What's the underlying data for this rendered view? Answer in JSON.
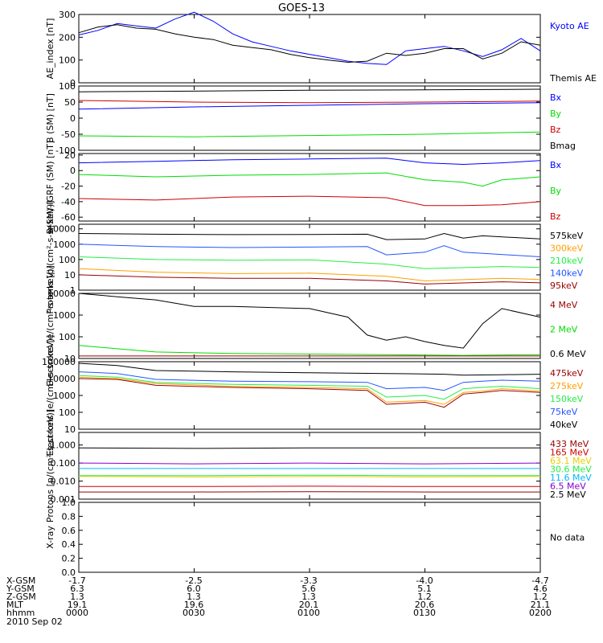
{
  "title": "GOES-13",
  "date": "2010 Sep 02",
  "colors": {
    "black": "#000000",
    "blue": "#0000ff",
    "green": "#00dd00",
    "red": "#cc0000",
    "orange": "#ffa000",
    "darkred": "#990000",
    "ltgreen": "#22ee44",
    "royal": "#2255ff",
    "cyan": "#00b8ff",
    "purple": "#8800cc",
    "yellow": "#e8d000"
  },
  "ephemeris": {
    "labels": [
      "X-GSM",
      "Y-GSM",
      "Z-GSM",
      "MLT",
      "hhmm"
    ],
    "columns": [
      [
        "-1.7",
        "6.3",
        "1.3",
        "19.1",
        "0000"
      ],
      [
        "-2.5",
        "6.0",
        "1.3",
        "19.6",
        "0030"
      ],
      [
        "-3.3",
        "5.6",
        "1.3",
        "20.1",
        "0100"
      ],
      [
        "-4.0",
        "5.1",
        "1.2",
        "20.6",
        "0130"
      ],
      [
        "-4.7",
        "4.6",
        "1.2",
        "21.1",
        "0200"
      ]
    ]
  },
  "chart_data": [
    {
      "type": "line",
      "ylabel": "AE_index [nT]",
      "ylim": [
        0,
        300
      ],
      "yticks": [
        0,
        100,
        200,
        300
      ],
      "xlim": [
        0,
        120
      ],
      "series": [
        {
          "name": "Kyoto AE",
          "color": "blue",
          "x": [
            0,
            5,
            10,
            15,
            20,
            25,
            30,
            35,
            40,
            45,
            50,
            55,
            60,
            65,
            70,
            75,
            80,
            85,
            90,
            95,
            100,
            105,
            110,
            115,
            120
          ],
          "y": [
            210,
            230,
            260,
            250,
            240,
            280,
            310,
            270,
            215,
            180,
            160,
            140,
            125,
            110,
            95,
            85,
            80,
            140,
            150,
            160,
            140,
            115,
            145,
            195,
            140
          ]
        },
        {
          "name": "Themis AE",
          "color": "black",
          "x": [
            0,
            5,
            10,
            15,
            20,
            25,
            30,
            35,
            40,
            45,
            50,
            55,
            60,
            65,
            70,
            75,
            80,
            85,
            90,
            95,
            100,
            105,
            110,
            115,
            120
          ],
          "y": [
            220,
            245,
            255,
            240,
            235,
            215,
            200,
            190,
            165,
            155,
            145,
            125,
            110,
            100,
            90,
            95,
            130,
            120,
            130,
            150,
            150,
            105,
            130,
            180,
            165
          ]
        }
      ]
    },
    {
      "type": "line",
      "ylabel": "B (SM) [nT]",
      "ylim": [
        -100,
        100
      ],
      "yticks": [
        -100,
        -50,
        0,
        50,
        100
      ],
      "xlim": [
        0,
        120
      ],
      "series": [
        {
          "name": "Bx",
          "color": "blue",
          "x": [
            0,
            30,
            60,
            90,
            120
          ],
          "y": [
            28,
            35,
            40,
            45,
            48
          ]
        },
        {
          "name": "By",
          "color": "green",
          "x": [
            0,
            30,
            60,
            90,
            120
          ],
          "y": [
            -55,
            -58,
            -54,
            -50,
            -43
          ]
        },
        {
          "name": "Bz",
          "color": "red",
          "x": [
            0,
            30,
            60,
            90,
            120
          ],
          "y": [
            55,
            50,
            48,
            50,
            53
          ]
        },
        {
          "name": "Bmag",
          "color": "black",
          "x": [
            0,
            30,
            60,
            90,
            120
          ],
          "y": [
            82,
            84,
            87,
            88,
            90
          ]
        }
      ]
    },
    {
      "type": "line",
      "ylabel": "B(SM)-IGRF (SM) [nT]",
      "ylim": [
        -65,
        22
      ],
      "yticks": [
        -60,
        -40,
        -20,
        0,
        20
      ],
      "xlim": [
        0,
        120
      ],
      "series": [
        {
          "name": "Bx",
          "color": "blue",
          "x": [
            0,
            20,
            40,
            60,
            80,
            90,
            100,
            110,
            120
          ],
          "y": [
            10,
            12,
            14,
            15,
            16,
            10,
            8,
            10,
            13
          ]
        },
        {
          "name": "By",
          "color": "green",
          "x": [
            0,
            20,
            40,
            60,
            80,
            90,
            100,
            105,
            110,
            120
          ],
          "y": [
            -5,
            -8,
            -6,
            -5,
            -3,
            -12,
            -15,
            -20,
            -12,
            -8
          ]
        },
        {
          "name": "Bz",
          "color": "red",
          "x": [
            0,
            20,
            40,
            60,
            80,
            90,
            100,
            110,
            120
          ],
          "y": [
            -36,
            -38,
            -34,
            -33,
            -35,
            -45,
            -45,
            -44,
            -40
          ]
        }
      ]
    },
    {
      "type": "line",
      "ylabel": "Protons [p/(cm²-s-sr-keV)]",
      "log": true,
      "ylim": [
        1,
        20000
      ],
      "yticks": [
        1,
        10,
        100,
        1000,
        10000
      ],
      "xlim": [
        0,
        120
      ],
      "series": [
        {
          "name": "575keV",
          "color": "black",
          "x": [
            0,
            20,
            40,
            60,
            75,
            80,
            90,
            95,
            100,
            105,
            120
          ],
          "y": [
            5000,
            4500,
            4200,
            4300,
            4500,
            2000,
            2200,
            5000,
            2500,
            3500,
            2200
          ]
        },
        {
          "name": "300keV",
          "color": "orange",
          "x": [
            0,
            20,
            40,
            60,
            80,
            90,
            110,
            120
          ],
          "y": [
            25,
            15,
            12,
            13,
            8,
            4,
            6,
            5
          ]
        },
        {
          "name": "210keV",
          "color": "ltgreen",
          "x": [
            0,
            20,
            40,
            60,
            80,
            90,
            110,
            120
          ],
          "y": [
            150,
            100,
            90,
            95,
            50,
            25,
            35,
            30
          ]
        },
        {
          "name": "140keV",
          "color": "royal",
          "x": [
            0,
            20,
            40,
            60,
            75,
            80,
            90,
            95,
            100,
            120
          ],
          "y": [
            1000,
            700,
            600,
            650,
            700,
            200,
            300,
            800,
            300,
            150
          ]
        },
        {
          "name": "95keV",
          "color": "darkred",
          "x": [
            0,
            20,
            40,
            60,
            80,
            90,
            110,
            120
          ],
          "y": [
            10,
            7,
            6,
            6,
            4,
            2.5,
            3.5,
            3
          ]
        }
      ]
    },
    {
      "type": "line",
      "ylabel": "Electrons [e/(cm²-s-sr-keV)]",
      "log": true,
      "ylim": [
        10,
        10000
      ],
      "yticks": [
        10,
        100,
        1000,
        10000
      ],
      "xlim": [
        0,
        120
      ],
      "series": [
        {
          "name": "4 MeV",
          "color": "darkred",
          "x": [
            0,
            30,
            60,
            90,
            120
          ],
          "y": [
            13,
            13,
            13,
            13,
            13
          ]
        },
        {
          "name": "2 MeV",
          "color": "green",
          "x": [
            0,
            10,
            20,
            40,
            60,
            80,
            100,
            120
          ],
          "y": [
            40,
            28,
            20,
            17,
            16,
            15,
            14,
            15
          ]
        },
        {
          "name": "0.6 MeV",
          "color": "black",
          "x": [
            0,
            10,
            20,
            30,
            40,
            60,
            70,
            75,
            80,
            85,
            90,
            95,
            100,
            105,
            110,
            120
          ],
          "y": [
            10000,
            7000,
            5000,
            2500,
            2500,
            2000,
            800,
            120,
            70,
            100,
            60,
            40,
            30,
            400,
            2000,
            800
          ]
        }
      ]
    },
    {
      "type": "line",
      "ylabel": "Electrons [e/(cm²-s-sr-keV)]",
      "log": true,
      "ylim": [
        10,
        100000
      ],
      "yticks": [
        10,
        100,
        1000,
        10000,
        100000
      ],
      "xlim": [
        0,
        120
      ],
      "series": [
        {
          "name": "475keV",
          "color": "darkred",
          "x": [
            0,
            10,
            20,
            40,
            60,
            75,
            80,
            90,
            95,
            100,
            105,
            110,
            120
          ],
          "y": [
            10000,
            9000,
            4000,
            3000,
            2500,
            2000,
            300,
            400,
            200,
            1200,
            1500,
            2000,
            1500
          ]
        },
        {
          "name": "275keV",
          "color": "orange",
          "x": [
            0,
            10,
            20,
            40,
            60,
            75,
            80,
            90,
            95,
            100,
            105,
            110,
            120
          ],
          "y": [
            12000,
            10000,
            5000,
            3500,
            3000,
            2500,
            400,
            500,
            300,
            1500,
            1800,
            2500,
            1800
          ]
        },
        {
          "name": "150keV",
          "color": "ltgreen",
          "x": [
            0,
            10,
            20,
            40,
            60,
            75,
            80,
            90,
            95,
            100,
            105,
            110,
            120
          ],
          "y": [
            15000,
            12000,
            6000,
            4500,
            4000,
            3500,
            800,
            1000,
            600,
            2500,
            3000,
            3500,
            2500
          ]
        },
        {
          "name": "75keV",
          "color": "royal",
          "x": [
            0,
            10,
            20,
            40,
            60,
            75,
            80,
            90,
            95,
            100,
            105,
            110,
            120
          ],
          "y": [
            25000,
            20000,
            9000,
            7000,
            6500,
            6000,
            2500,
            3000,
            2000,
            6000,
            7000,
            8000,
            7000
          ]
        },
        {
          "name": "40keV",
          "color": "black",
          "x": [
            0,
            10,
            20,
            40,
            60,
            80,
            95,
            100,
            110,
            120
          ],
          "y": [
            80000,
            60000,
            30000,
            25000,
            22000,
            20000,
            18000,
            16000,
            17000,
            18000
          ]
        }
      ]
    },
    {
      "type": "line",
      "ylabel": "Protons [p/(cm²-s-sr-keV)]",
      "log": true,
      "ylim": [
        0.001,
        5
      ],
      "yticks": [
        0.001,
        0.01,
        0.1,
        1
      ],
      "ytick_labels": [
        "0.001",
        "0.010",
        "0.100",
        "1.000"
      ],
      "xlim": [
        0,
        120
      ],
      "series": [
        {
          "name": "433 MeV",
          "color": "darkred",
          "x": [
            0,
            30,
            60,
            90,
            120
          ],
          "y": [
            0.0025,
            0.0025,
            0.0026,
            0.0025,
            0.0025
          ]
        },
        {
          "name": "165 MeV",
          "color": "red",
          "x": [
            0,
            30,
            60,
            90,
            120
          ],
          "y": [
            0.005,
            0.005,
            0.0052,
            0.005,
            0.005
          ]
        },
        {
          "name": "63.1 MeV",
          "color": "yellow",
          "x": [
            0,
            30,
            60,
            90,
            120
          ],
          "y": [
            0.018,
            0.017,
            0.018,
            0.017,
            0.018
          ]
        },
        {
          "name": "30.6 MeV",
          "color": "ltgreen",
          "x": [
            0,
            30,
            60,
            90,
            120
          ],
          "y": [
            0.02,
            0.02,
            0.021,
            0.02,
            0.02
          ]
        },
        {
          "name": "11.6 MeV",
          "color": "cyan",
          "x": [
            0,
            30,
            60,
            90,
            120
          ],
          "y": [
            0.05,
            0.05,
            0.05,
            0.05,
            0.05
          ]
        },
        {
          "name": "6.5 MeV",
          "color": "purple",
          "x": [
            0,
            30,
            60,
            90,
            120
          ],
          "y": [
            0.1,
            0.09,
            0.1,
            0.09,
            0.1
          ]
        },
        {
          "name": "2.5 MeV",
          "color": "black",
          "x": [
            0,
            30,
            60,
            90,
            120
          ],
          "y": [
            0.7,
            0.65,
            0.7,
            0.7,
            0.7
          ]
        }
      ]
    },
    {
      "type": "line",
      "ylabel": "X-ray",
      "ylim": [
        0,
        1
      ],
      "yticks": [
        0,
        0.2,
        0.4,
        0.6,
        0.8,
        1.0
      ],
      "ytick_labels": [
        "0.0",
        "0.2",
        "0.4",
        "0.6",
        "0.8",
        "1.0"
      ],
      "xlim": [
        0,
        120
      ],
      "note": "No data",
      "series": []
    }
  ]
}
